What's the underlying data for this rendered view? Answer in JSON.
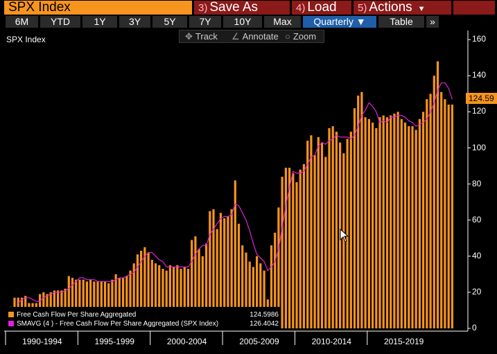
{
  "toolbar": {
    "ticker": "SPX Index",
    "save": {
      "num": "3)",
      "label": "Save As"
    },
    "load": {
      "num": "4)",
      "label": "Load"
    },
    "actions": {
      "num": "5)",
      "label": "Actions"
    }
  },
  "ranges": [
    "6M",
    "YTD",
    "1Y",
    "3Y",
    "5Y",
    "7Y",
    "10Y",
    "Max",
    "Quarterly ▼",
    "Table",
    "»"
  ],
  "tools": {
    "track": "Track",
    "annotate": "Annotate",
    "zoom": "Zoom"
  },
  "chart_title": "SPX Index",
  "last_value_label": "124.59",
  "legend": {
    "items": [
      {
        "label": "Free Cash Flow Per Share Aggregated",
        "value": "124.5986",
        "color": "#f7941d"
      },
      {
        "label": "SMAVG (4 ) - Free Cash Flow Per Share Aggregated (SPX Index)",
        "value": "126.4042",
        "color": "#e020e0"
      }
    ]
  },
  "colors": {
    "bar": "#f7941d",
    "sma": "#e020e0",
    "grid": "#2a2a2a"
  },
  "chart_data": {
    "type": "bar",
    "series": [
      {
        "name": "Free Cash Flow Per Share Aggregated",
        "values": [
          11,
          12,
          17,
          17,
          17,
          18,
          14,
          14,
          14,
          19,
          20,
          19,
          20,
          21,
          21,
          21,
          22,
          29,
          28,
          27,
          27,
          27,
          26,
          27,
          26,
          26,
          26,
          26,
          25,
          27,
          30,
          28,
          28,
          29,
          32,
          36,
          41,
          43,
          45,
          42,
          38,
          36,
          35,
          33,
          32,
          35,
          34,
          35,
          33,
          34,
          33,
          49,
          51,
          44,
          40,
          47,
          65,
          66,
          55,
          64,
          61,
          62,
          66,
          82,
          58,
          46,
          42,
          37,
          34,
          40,
          36,
          32,
          16,
          46,
          53,
          67,
          84,
          89,
          89,
          86,
          81,
          88,
          91,
          104,
          107,
          96,
          106,
          103,
          95,
          111,
          112,
          109,
          103,
          97,
          105,
          109,
          122,
          129,
          131,
          117,
          116,
          114,
          111,
          117,
          118,
          117,
          118,
          119,
          120,
          116,
          114,
          112,
          112,
          110,
          116,
          120,
          127,
          130,
          140,
          148,
          131,
          127,
          124,
          124
        ]
      },
      {
        "name": "SMAVG (4 ) - Free Cash Flow Per Share Aggregated (SPX Index)",
        "values": [
          null,
          null,
          null,
          14,
          16,
          17,
          17,
          16,
          15,
          15,
          17,
          18,
          19,
          20,
          20,
          20,
          21,
          22,
          24,
          26,
          28,
          28,
          27,
          27,
          27,
          26,
          26,
          26,
          26,
          26,
          27,
          28,
          28,
          29,
          30,
          31,
          34,
          37,
          40,
          42,
          42,
          40,
          38,
          37,
          34,
          34,
          34,
          34,
          34,
          34,
          34,
          37,
          41,
          44,
          46,
          46,
          52,
          55,
          58,
          61,
          62,
          62,
          63,
          69,
          68,
          64,
          60,
          54,
          47,
          41,
          39,
          37,
          32,
          34,
          37,
          44,
          56,
          68,
          78,
          87,
          86,
          86,
          87,
          91,
          95,
          96,
          101,
          103,
          102,
          104,
          105,
          107,
          106,
          106,
          106,
          105,
          107,
          112,
          118,
          121,
          125,
          123,
          120,
          114,
          115,
          114,
          117,
          117,
          118,
          118,
          117,
          115,
          114,
          112,
          113,
          114,
          116,
          120,
          125,
          132,
          136,
          136,
          133,
          127
        ]
      }
    ],
    "x_labels": [
      "1990-1994",
      "1995-1999",
      "2000-2004",
      "2005-2009",
      "2010-2014",
      "2015-2019"
    ],
    "y_ticks": [
      0,
      20,
      40,
      60,
      80,
      100,
      120,
      140,
      160
    ],
    "ylim": [
      0,
      162
    ],
    "last_value": 124.59,
    "grid": false,
    "legend_position": "bottom-left"
  }
}
